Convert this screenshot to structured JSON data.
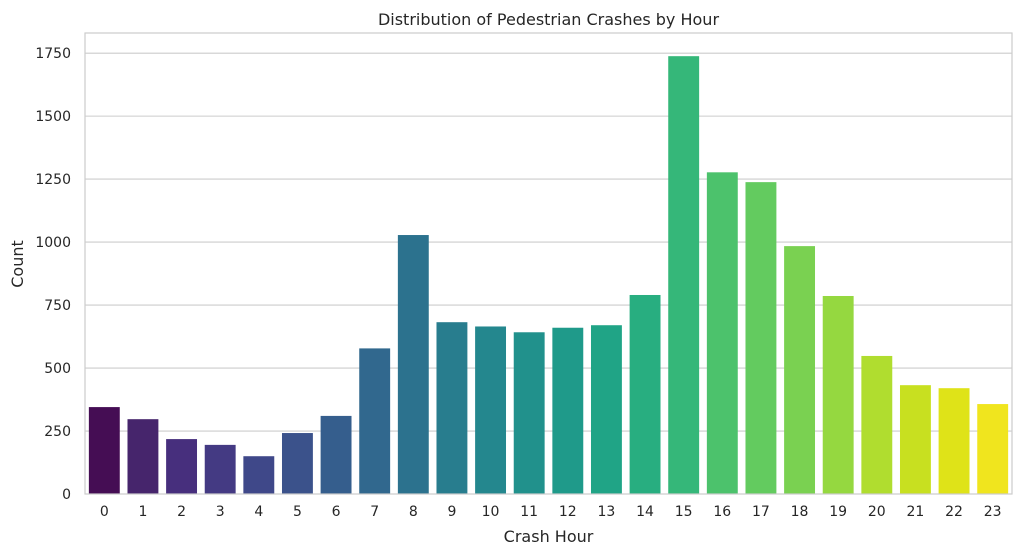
{
  "chart_data": {
    "type": "bar",
    "title": "Distribution of Pedestrian Crashes by Hour",
    "xlabel": "Crash Hour",
    "ylabel": "Count",
    "categories": [
      "0",
      "1",
      "2",
      "3",
      "4",
      "5",
      "6",
      "7",
      "8",
      "9",
      "10",
      "11",
      "12",
      "13",
      "14",
      "15",
      "16",
      "17",
      "18",
      "19",
      "20",
      "21",
      "22",
      "23"
    ],
    "values": [
      345,
      297,
      218,
      195,
      150,
      242,
      310,
      578,
      1028,
      682,
      665,
      642,
      660,
      670,
      790,
      1738,
      1277,
      1238,
      984,
      786,
      548,
      432,
      420,
      357
    ],
    "ylim": [
      0,
      1830
    ],
    "yticks": [
      0,
      250,
      500,
      750,
      1000,
      1250,
      1500,
      1750
    ],
    "ytick_labels": [
      "0",
      "250",
      "500",
      "750",
      "1000",
      "1250",
      "1500",
      "1750"
    ],
    "grid": true,
    "colors": [
      "#450d54",
      "#46256c",
      "#472f7d",
      "#443a83",
      "#3f4889",
      "#3b528b",
      "#355e8d",
      "#31688e",
      "#2c728e",
      "#287d8e",
      "#24878e",
      "#21918c",
      "#1f9a8a",
      "#20a486",
      "#28ae80",
      "#35b779",
      "#4cc26c",
      "#63cb5f",
      "#7ad151",
      "#95d840",
      "#b0dd2f",
      "#c8e020",
      "#dfe318",
      "#f0e51e"
    ]
  }
}
